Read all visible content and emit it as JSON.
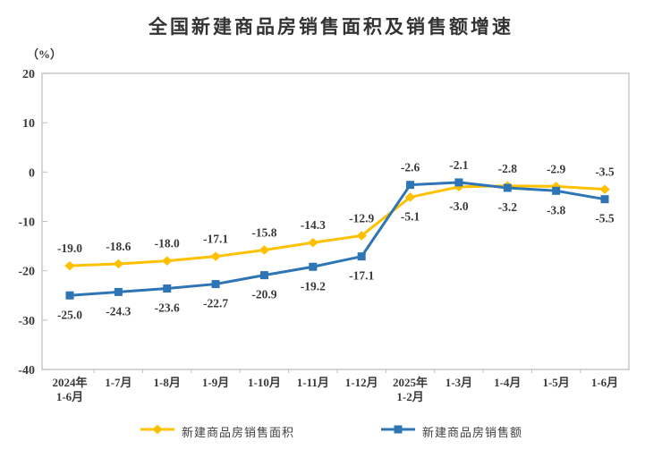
{
  "chart_data": {
    "type": "line",
    "title": "全国新建商品房销售面积及销售额增速",
    "unit": "（%）",
    "categories": [
      "2024年\n1-6月",
      "1-7月",
      "1-8月",
      "1-9月",
      "1-10月",
      "1-11月",
      "1-12月",
      "2025年\n1-2月",
      "1-3月",
      "1-4月",
      "1-5月",
      "1-6月"
    ],
    "ylim": [
      -40,
      20
    ],
    "yticks": [
      20,
      10,
      0,
      -10,
      -20,
      -30,
      -40
    ],
    "grid": false,
    "legend_position": "bottom",
    "colors": {
      "axis_border": "#c8c8c8",
      "tick": "#bfbfbf",
      "text": "#3a3a3a"
    },
    "series": [
      {
        "name": "新建商品房销售面积",
        "color": "#FFC000",
        "marker": "diamond",
        "values": [
          -19.0,
          -18.6,
          -18.0,
          -17.1,
          -15.8,
          -14.3,
          -12.9,
          -5.1,
          -3.0,
          -2.8,
          -2.9,
          -3.5
        ],
        "label_side": [
          "above",
          "above",
          "above",
          "above",
          "above",
          "above",
          "above",
          "below",
          "below",
          "above",
          "above",
          "above"
        ]
      },
      {
        "name": "新建商品房销售额",
        "color": "#2E75B6",
        "marker": "square",
        "values": [
          -25.0,
          -24.3,
          -23.6,
          -22.7,
          -20.9,
          -19.2,
          -17.1,
          -2.6,
          -2.1,
          -3.2,
          -3.8,
          -5.5
        ],
        "label_side": [
          "below",
          "below",
          "below",
          "below",
          "below",
          "below",
          "below",
          "above",
          "above",
          "below",
          "below",
          "below"
        ]
      }
    ]
  }
}
